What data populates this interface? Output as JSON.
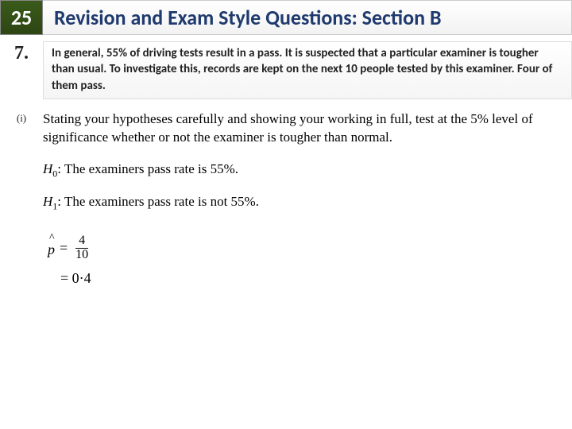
{
  "header": {
    "slide_number": "25",
    "title": "Revision and Exam Style Questions: Section B"
  },
  "question": {
    "number": "7.",
    "text": "In general, 55% of driving tests result in a pass. It is suspected that a particular examiner is tougher than usual. To investigate this, records are kept on the next 10 people tested by this examiner. Four of them pass."
  },
  "part": {
    "label": "(i)",
    "text": "Stating your hypotheses carefully and showing your working in full, test at the 5% level of significance whether or not the examiner is tougher than normal."
  },
  "hypotheses": {
    "h0_prefix": "H",
    "h0_sub": "0",
    "h0_text": ": The examiners pass rate is 55%.",
    "h1_prefix": "H",
    "h1_sub": "1",
    "h1_text": ": The examiners pass rate is not 55%."
  },
  "formula": {
    "lhs": "p",
    "eq": "=",
    "numerator": "4",
    "denominator": "10",
    "result_eq": "=",
    "result": "0·4"
  }
}
